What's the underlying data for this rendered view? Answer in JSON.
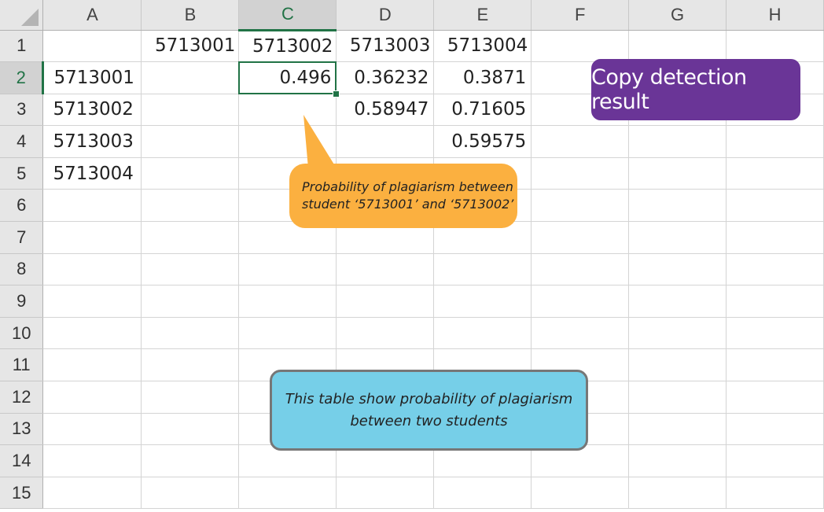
{
  "spreadsheet": {
    "columns": [
      "A",
      "B",
      "C",
      "D",
      "E",
      "F",
      "G",
      "H"
    ],
    "selected_column": "C",
    "row_numbers": [
      "1",
      "2",
      "3",
      "4",
      "5",
      "6",
      "7",
      "8",
      "9",
      "10",
      "11",
      "12",
      "13",
      "14",
      "15"
    ],
    "selected_row": "2",
    "active_cell": "C2",
    "row1": {
      "B": "5713001",
      "C": "5713002",
      "D": "5713003",
      "E": "5713004"
    },
    "row2": {
      "A": "5713001",
      "C": "0.496",
      "D": "0.36232",
      "E": "0.3871"
    },
    "row3": {
      "A": "5713002",
      "D": "0.58947",
      "E": "0.71605"
    },
    "row4": {
      "A": "5713003",
      "E": "0.59575"
    },
    "row5": {
      "A": "5713004"
    }
  },
  "annotations": {
    "title_badge": "Copy detection result",
    "cell_callout_line1": "Probability of plagiarism between",
    "cell_callout_line2": "student ‘5713001’ and ‘5713002’",
    "table_note_line1": "This table show probability of plagiarism",
    "table_note_line2": "between two students",
    "colors": {
      "badge": "#6a3597",
      "cell_callout": "#fbb040",
      "table_note": "#76cfe8",
      "selection": "#217346"
    }
  }
}
